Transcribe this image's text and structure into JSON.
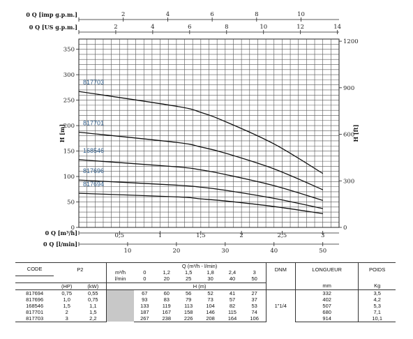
{
  "chart_data": {
    "type": "line",
    "x_label": "Q [m³/h]",
    "x_range": [
      0,
      3.2
    ],
    "x_ticks": [
      "0",
      "0,5",
      "1",
      "1,5",
      "2",
      "2,5",
      "3"
    ],
    "top_axes": [
      {
        "label": "Q [imp g.p.m.]",
        "range": [
          0,
          11.71
        ],
        "ticks": [
          "0",
          "2",
          "4",
          "6",
          "8",
          "10"
        ]
      },
      {
        "label": "Q [US g.p.m.]",
        "range": [
          0,
          14.09
        ],
        "ticks": [
          "0",
          "2",
          "4",
          "6",
          "8",
          "10",
          "12",
          "14"
        ]
      }
    ],
    "bottom_axis2": {
      "label": "Q [l/min]",
      "range": [
        0,
        53.33
      ],
      "ticks": [
        "0",
        "10",
        "20",
        "30",
        "40",
        "50"
      ]
    },
    "y_label": "H [m]",
    "y_range": [
      0,
      370
    ],
    "y_ticks": [
      "0",
      "50",
      "100",
      "150",
      "200",
      "250",
      "300",
      "350"
    ],
    "y2_label": "H [ft]",
    "y2_range": [
      0,
      1213.9
    ],
    "y2_ticks": [
      "0",
      "300",
      "600",
      "900",
      "1200"
    ],
    "grid": true,
    "series": [
      {
        "name": "817703",
        "x": [
          0,
          1.2,
          1.5,
          1.8,
          2.4,
          3
        ],
        "y": [
          267,
          238,
          226,
          208,
          164,
          106
        ]
      },
      {
        "name": "817701",
        "x": [
          0,
          1.2,
          1.5,
          1.8,
          2.4,
          3
        ],
        "y": [
          187,
          167,
          158,
          146,
          115,
          74
        ]
      },
      {
        "name": "168546",
        "x": [
          0,
          1.2,
          1.5,
          1.8,
          2.4,
          3
        ],
        "y": [
          133,
          119,
          113,
          104,
          82,
          53
        ]
      },
      {
        "name": "817696",
        "x": [
          0,
          1.2,
          1.5,
          1.8,
          2.4,
          3
        ],
        "y": [
          93,
          83,
          79,
          73,
          57,
          37
        ]
      },
      {
        "name": "817694",
        "x": [
          0,
          1.2,
          1.5,
          1.8,
          2.4,
          3
        ],
        "y": [
          67,
          60,
          56,
          52,
          41,
          27
        ]
      }
    ]
  },
  "table": {
    "code_header": "CODE",
    "p2_header": "P2",
    "hp_label": "(HP)",
    "kw_label": "(kW)",
    "q_header": "Q (m³/h - l/min)",
    "m3h_label": "m³/h",
    "lmin_label": "l/min",
    "q_m3h": [
      "0",
      "1,2",
      "1,5",
      "1,8",
      "2,4",
      "3"
    ],
    "q_lmin": [
      "0",
      "20",
      "25",
      "30",
      "40",
      "50"
    ],
    "h_header": "H (m)",
    "dnm_header": "DNM",
    "dnm_value": "1\"1/4",
    "length_header": "LONGUEUR",
    "length_unit": "mm",
    "weight_header": "POIDS",
    "weight_unit": "Kg",
    "rows": [
      {
        "code": "817694",
        "hp": "0,75",
        "kw": "0,55",
        "h": [
          "67",
          "60",
          "56",
          "52",
          "41",
          "27"
        ],
        "length": "332",
        "weight": "3,5"
      },
      {
        "code": "817696",
        "hp": "1,0",
        "kw": "0,75",
        "h": [
          "93",
          "83",
          "79",
          "73",
          "57",
          "37"
        ],
        "length": "402",
        "weight": "4,2"
      },
      {
        "code": "168546",
        "hp": "1,5",
        "kw": "1,1",
        "h": [
          "133",
          "119",
          "113",
          "104",
          "82",
          "53"
        ],
        "length": "507",
        "weight": "5,3"
      },
      {
        "code": "817701",
        "hp": "2",
        "kw": "1,5",
        "h": [
          "187",
          "167",
          "158",
          "146",
          "115",
          "74"
        ],
        "length": "680",
        "weight": "7,1"
      },
      {
        "code": "817703",
        "hp": "3",
        "kw": "2,2",
        "h": [
          "267",
          "238",
          "226",
          "208",
          "164",
          "106"
        ],
        "length": "914",
        "weight": "10,1"
      }
    ]
  }
}
